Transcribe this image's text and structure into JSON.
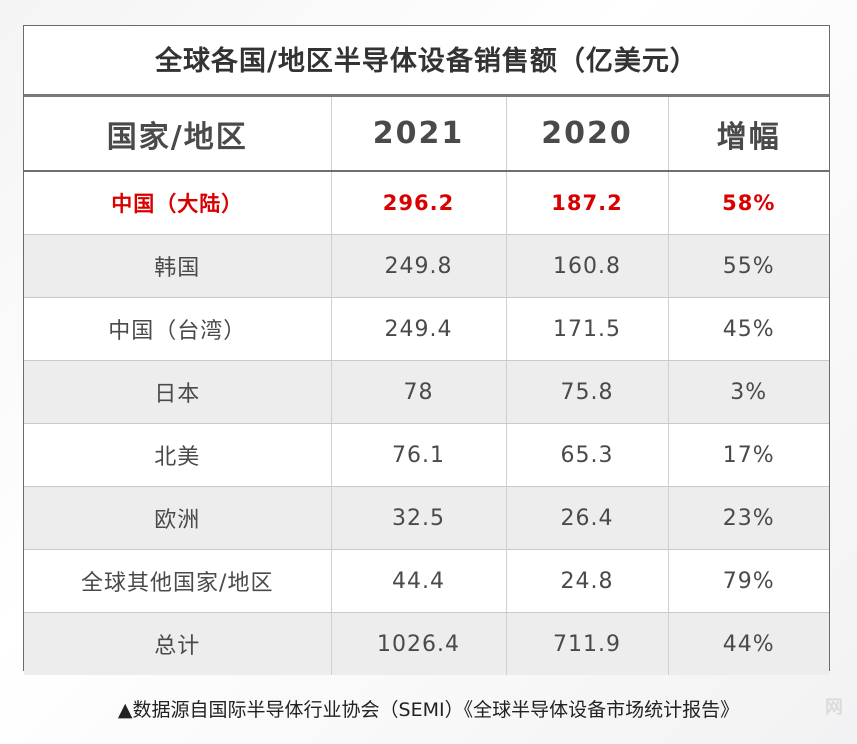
{
  "title": "全球各国/地区半导体设备销售额（亿美元）",
  "headers": [
    "国家/地区",
    "2021",
    "2020",
    "增幅"
  ],
  "rows": [
    {
      "region": "中国（大陆）",
      "y2021": "296.2",
      "y2020": "187.2",
      "growth": "58%"
    },
    {
      "region": "韩国",
      "y2021": "249.8",
      "y2020": "160.8",
      "growth": "55%"
    },
    {
      "region": "中国（台湾）",
      "y2021": "249.4",
      "y2020": "171.5",
      "growth": "45%"
    },
    {
      "region": "日本",
      "y2021": "78",
      "y2020": "75.8",
      "growth": "3%"
    },
    {
      "region": "北美",
      "y2021": "76.1",
      "y2020": "65.3",
      "growth": "17%"
    },
    {
      "region": "欧洲",
      "y2021": "32.5",
      "y2020": "26.4",
      "growth": "23%"
    },
    {
      "region": "全球其他国家/地区",
      "y2021": "44.4",
      "y2020": "24.8",
      "growth": "79%"
    },
    {
      "region": "总计",
      "y2021": "1026.4",
      "y2020": "711.9",
      "growth": "44%"
    }
  ],
  "source": "▲数据源自国际半导体行业协会（SEMI）《全球半导体设备市场统计报告》",
  "watermark": "网",
  "colors": {
    "highlight": "#d90000",
    "shade": "#ededed",
    "text": "#4a4a4a"
  }
}
